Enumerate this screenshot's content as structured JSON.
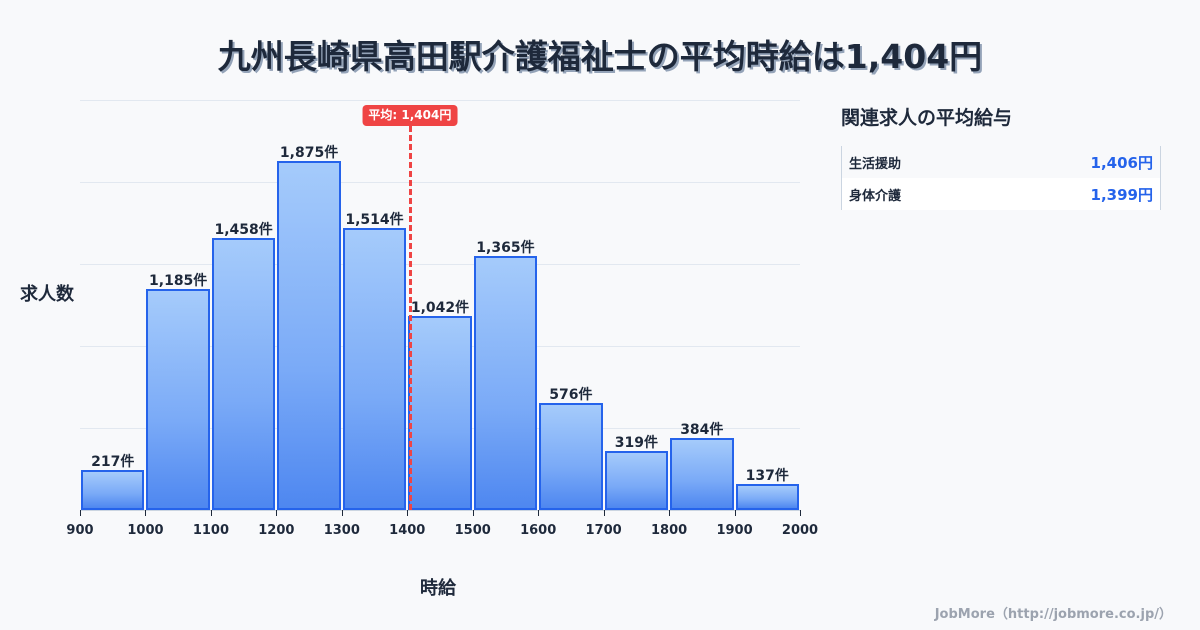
{
  "title": "九州長崎県高田駅介護福祉士の平均時給は1,404円",
  "chart_data": {
    "type": "bar",
    "subtype": "histogram",
    "title": "九州長崎県高田駅介護福祉士の平均時給は1,404円",
    "xlabel": "時給",
    "ylabel": "求人数",
    "bin_edges": [
      900,
      1000,
      1100,
      1200,
      1300,
      1400,
      1500,
      1600,
      1700,
      1800,
      1900,
      2000
    ],
    "categories": [
      "900-1000",
      "1000-1100",
      "1100-1200",
      "1200-1300",
      "1300-1400",
      "1400-1500",
      "1500-1600",
      "1600-1700",
      "1700-1800",
      "1800-1900",
      "1900-2000"
    ],
    "values": [
      217,
      1185,
      1458,
      1875,
      1514,
      1042,
      1365,
      576,
      319,
      384,
      137
    ],
    "value_labels": [
      "217件",
      "1,185件",
      "1,458件",
      "1,875件",
      "1,514件",
      "1,042件",
      "1,365件",
      "576件",
      "319件",
      "384件",
      "137件"
    ],
    "x_tick_labels": [
      "900",
      "1000",
      "1100",
      "1200",
      "1300",
      "1400",
      "1500",
      "1600",
      "1700",
      "1800",
      "1900",
      "2000"
    ],
    "xlim": [
      900,
      2000
    ],
    "ylim": [
      0,
      2200
    ],
    "grid": "horizontal",
    "y_ticks_hidden": true,
    "annotations": [
      {
        "type": "vline",
        "x": 1404,
        "label": "平均: 1,404円",
        "color": "#ef4444",
        "style": "dashed"
      }
    ],
    "colors": {
      "bar_fill_top": "#a5cbfb",
      "bar_fill_bottom": "#4e87f0",
      "bar_border": "#2563eb",
      "avg_line": "#ef4444"
    }
  },
  "axis": {
    "ylabel": "求人数",
    "xlabel": "時給"
  },
  "average_badge": "平均: 1,404円",
  "sidebar": {
    "title": "関連求人の平均給与",
    "rows": [
      {
        "name": "生活援助",
        "value": "1,406円"
      },
      {
        "name": "身体介護",
        "value": "1,399円"
      }
    ]
  },
  "footer": "JobMore（http://jobmore.co.jp/）"
}
